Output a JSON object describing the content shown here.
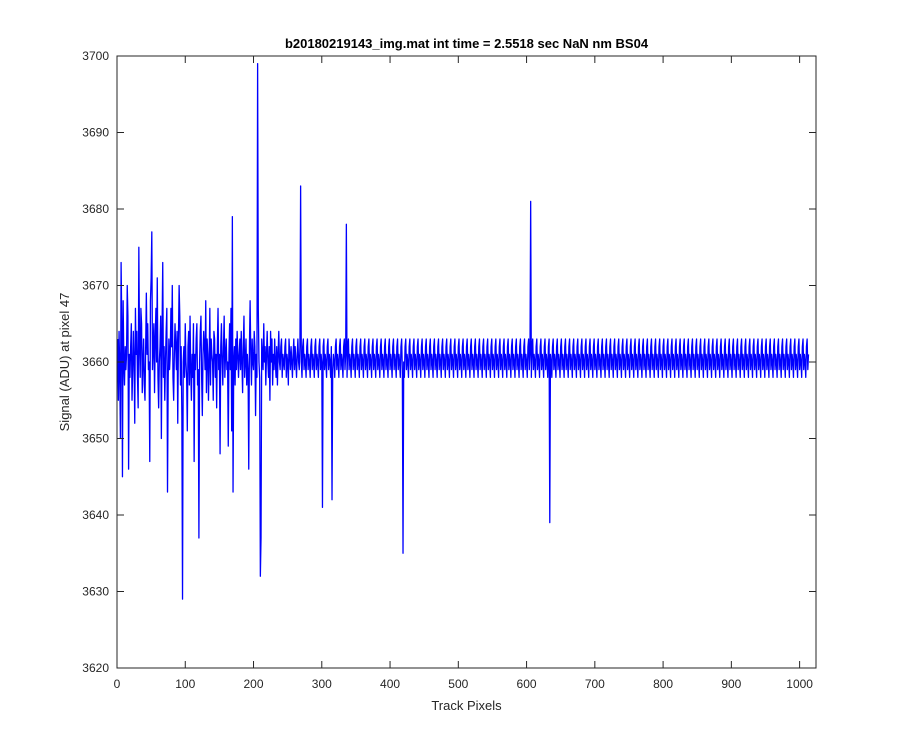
{
  "chart_data": {
    "type": "line",
    "title": "b20180219143_img.mat int time = 2.5518 sec  NaN nm BS04",
    "xlabel": "Track Pixels",
    "ylabel": "Signal (ADU) at pixel 47",
    "xlim": [
      0,
      1024
    ],
    "ylim": [
      3620,
      3700
    ],
    "xticks": [
      0,
      100,
      200,
      300,
      400,
      500,
      600,
      700,
      800,
      900,
      1000
    ],
    "yticks": [
      3620,
      3630,
      3640,
      3650,
      3660,
      3670,
      3680,
      3690,
      3700
    ],
    "xtick_labels": [
      "0",
      "100",
      "200",
      "300",
      "400",
      "500",
      "600",
      "700",
      "800",
      "900",
      "1000"
    ],
    "ytick_labels": [
      "3620",
      "3630",
      "3640",
      "3650",
      "3660",
      "3670",
      "3680",
      "3690",
      "3700"
    ],
    "grid": false,
    "legend": "none",
    "series": [
      {
        "color": "#0000ff",
        "x_start": 1,
        "x_step": 1,
        "values": [
          3663,
          3655,
          3664,
          3659,
          3650,
          3673,
          3665,
          3645,
          3668,
          3660,
          3657,
          3662,
          3659,
          3661,
          3670,
          3666,
          3646,
          3661,
          3658,
          3662,
          3665,
          3655,
          3659,
          3664,
          3660,
          3652,
          3667,
          3661,
          3664,
          3658,
          3654,
          3675,
          3662,
          3658,
          3667,
          3665,
          3656,
          3660,
          3663,
          3657,
          3655,
          3662,
          3669,
          3661,
          3665,
          3659,
          3660,
          3647,
          3668,
          3671,
          3677,
          3659,
          3662,
          3665,
          3656,
          3663,
          3667,
          3660,
          3671,
          3658,
          3654,
          3660,
          3662,
          3666,
          3650,
          3664,
          3673,
          3658,
          3662,
          3655,
          3660,
          3664,
          3667,
          3643,
          3658,
          3663,
          3659,
          3661,
          3667,
          3662,
          3670,
          3658,
          3655,
          3661,
          3665,
          3662,
          3659,
          3664,
          3652,
          3663,
          3670,
          3666,
          3657,
          3662,
          3653,
          3629,
          3660,
          3662,
          3658,
          3665,
          3660,
          3658,
          3651,
          3662,
          3664,
          3657,
          3666,
          3659,
          3655,
          3661,
          3658,
          3665,
          3647,
          3661,
          3659,
          3663,
          3665,
          3657,
          3659,
          3637,
          3660,
          3664,
          3666,
          3658,
          3653,
          3661,
          3664,
          3662,
          3659,
          3668,
          3656,
          3663,
          3661,
          3655,
          3660,
          3667,
          3657,
          3663,
          3661,
          3660,
          3655,
          3664,
          3663,
          3658,
          3661,
          3654,
          3662,
          3667,
          3659,
          3661,
          3648,
          3662,
          3665,
          3660,
          3657,
          3662,
          3666,
          3658,
          3661,
          3663,
          3659,
          3660,
          3649,
          3661,
          3665,
          3659,
          3667,
          3651,
          3679,
          3643,
          3660,
          3662,
          3657,
          3663,
          3659,
          3664,
          3661,
          3658,
          3661,
          3663,
          3659,
          3664,
          3660,
          3656,
          3662,
          3666,
          3658,
          3660,
          3663,
          3657,
          3661,
          3659,
          3646,
          3662,
          3668,
          3661,
          3657,
          3663,
          3660,
          3659,
          3664,
          3662,
          3653,
          3661,
          3658,
          3699,
          3667,
          3660,
          3658,
          3632,
          3637,
          3663,
          3661,
          3659,
          3665,
          3660,
          3662,
          3657,
          3661,
          3664,
          3660,
          3658,
          3662,
          3655,
          3664,
          3660,
          3663,
          3657,
          3661,
          3659,
          3663,
          3660,
          3658,
          3662,
          3657,
          3661,
          3664,
          3660,
          3659,
          3662,
          3663,
          3658,
          3661,
          3660,
          3659,
          3662,
          3663,
          3658,
          3661,
          3660,
          3657,
          3663,
          3661,
          3659,
          3662,
          3660,
          3658,
          3661,
          3663,
          3659,
          3662,
          3660,
          3658,
          3661,
          3663,
          3660,
          3659,
          3662,
          3683,
          3660,
          3658,
          3662,
          3663,
          3659,
          3661,
          3660,
          3658,
          3662,
          3663,
          3659,
          3661,
          3660,
          3658,
          3662,
          3663,
          3659,
          3661,
          3660,
          3658,
          3662,
          3663,
          3659,
          3661,
          3660,
          3658,
          3662,
          3663,
          3659,
          3661,
          3660,
          3641,
          3662,
          3663,
          3659,
          3661,
          3660,
          3658,
          3662,
          3663,
          3659,
          3661,
          3660,
          3658,
          3662,
          3642,
          3659,
          3661,
          3660,
          3658,
          3662,
          3663,
          3659,
          3661,
          3660,
          3658,
          3662,
          3663,
          3659,
          3661,
          3660,
          3658,
          3662,
          3663,
          3659,
          3661,
          3678,
          3658,
          3662,
          3663,
          3659,
          3661,
          3660,
          3658,
          3662,
          3663,
          3659,
          3661,
          3660,
          3658,
          3662,
          3663,
          3659,
          3661,
          3660,
          3658,
          3662,
          3663,
          3659,
          3661,
          3660,
          3658,
          3662,
          3663,
          3659,
          3661,
          3660,
          3658,
          3662,
          3663,
          3659,
          3661,
          3660,
          3658,
          3662,
          3663,
          3659,
          3661,
          3660,
          3658,
          3662,
          3663,
          3659,
          3661,
          3660,
          3658,
          3662,
          3663,
          3659,
          3661,
          3660,
          3658,
          3662,
          3663,
          3659,
          3661,
          3660,
          3658,
          3662,
          3663,
          3659,
          3661,
          3660,
          3658,
          3662,
          3663,
          3659,
          3661,
          3660,
          3658,
          3662,
          3663,
          3659,
          3661,
          3660,
          3658,
          3662,
          3663,
          3659,
          3635,
          3660,
          3658,
          3662,
          3663,
          3659,
          3661,
          3660,
          3658,
          3662,
          3663,
          3659,
          3661,
          3660,
          3658,
          3662,
          3663,
          3659,
          3661,
          3660,
          3658,
          3662,
          3663,
          3659,
          3661,
          3660,
          3658,
          3662,
          3663,
          3659,
          3661,
          3660,
          3658,
          3662,
          3663,
          3659,
          3661,
          3660,
          3658,
          3662,
          3663,
          3659,
          3661,
          3660,
          3658,
          3662,
          3663,
          3659,
          3661,
          3660,
          3658,
          3662,
          3663,
          3659,
          3661,
          3660,
          3658,
          3662,
          3663,
          3659,
          3661,
          3660,
          3658,
          3662,
          3663,
          3659,
          3661,
          3660,
          3658,
          3662,
          3663,
          3659,
          3661,
          3660,
          3658,
          3662,
          3663,
          3659,
          3661,
          3660,
          3658,
          3662,
          3663,
          3659,
          3661,
          3660,
          3658,
          3662,
          3663,
          3659,
          3661,
          3660,
          3658,
          3662,
          3663,
          3659,
          3661,
          3660,
          3658,
          3662,
          3663,
          3659,
          3661,
          3660,
          3658,
          3662,
          3663,
          3659,
          3661,
          3660,
          3658,
          3662,
          3663,
          3659,
          3661,
          3660,
          3658,
          3662,
          3663,
          3659,
          3661,
          3660,
          3658,
          3662,
          3663,
          3659,
          3661,
          3660,
          3658,
          3662,
          3663,
          3659,
          3661,
          3660,
          3658,
          3662,
          3663,
          3659,
          3661,
          3660,
          3658,
          3662,
          3663,
          3659,
          3661,
          3660,
          3658,
          3662,
          3663,
          3659,
          3661,
          3660,
          3658,
          3662,
          3663,
          3659,
          3661,
          3660,
          3658,
          3662,
          3663,
          3659,
          3661,
          3660,
          3658,
          3662,
          3663,
          3659,
          3661,
          3660,
          3658,
          3662,
          3663,
          3659,
          3661,
          3660,
          3658,
          3662,
          3663,
          3659,
          3661,
          3660,
          3658,
          3662,
          3663,
          3659,
          3661,
          3681,
          3658,
          3662,
          3663,
          3659,
          3661,
          3660,
          3658,
          3662,
          3663,
          3659,
          3661,
          3660,
          3658,
          3662,
          3663,
          3659,
          3661,
          3660,
          3658,
          3662,
          3663,
          3659,
          3661,
          3660,
          3658,
          3662,
          3663,
          3639,
          3661,
          3660,
          3658,
          3662,
          3663,
          3659,
          3661,
          3660,
          3658,
          3662,
          3663,
          3659,
          3661,
          3660,
          3658,
          3662,
          3663,
          3659,
          3661,
          3660,
          3658,
          3662,
          3663,
          3659,
          3661,
          3660,
          3658,
          3662,
          3663,
          3659,
          3661,
          3660,
          3658,
          3662,
          3663,
          3659,
          3661,
          3660,
          3658,
          3662,
          3663,
          3659,
          3661,
          3660,
          3658,
          3662,
          3663,
          3659,
          3661,
          3660,
          3658,
          3662,
          3663,
          3659,
          3661,
          3660,
          3658,
          3662,
          3663,
          3659,
          3661,
          3660,
          3658,
          3662,
          3663,
          3659,
          3661,
          3660,
          3658,
          3662,
          3663,
          3659,
          3661,
          3660,
          3658,
          3662,
          3663,
          3659,
          3661,
          3660,
          3658,
          3662,
          3663,
          3659,
          3661,
          3660,
          3658,
          3662,
          3663,
          3659,
          3661,
          3660,
          3658,
          3662,
          3663,
          3659,
          3661,
          3660,
          3658,
          3662,
          3663,
          3659,
          3661,
          3660,
          3658,
          3662,
          3663,
          3659,
          3661,
          3660,
          3658,
          3662,
          3663,
          3659,
          3661,
          3660,
          3658,
          3662,
          3663,
          3659,
          3661,
          3660,
          3658,
          3662,
          3663,
          3659,
          3661,
          3660,
          3658,
          3662,
          3663,
          3659,
          3661,
          3660,
          3658,
          3662,
          3663,
          3659,
          3661,
          3660,
          3658,
          3662,
          3663,
          3659,
          3661,
          3660,
          3658,
          3662,
          3663,
          3659,
          3661,
          3660,
          3658,
          3662,
          3663,
          3659,
          3661,
          3660,
          3658,
          3662,
          3663,
          3659,
          3661,
          3660,
          3658,
          3662,
          3663,
          3659,
          3661,
          3660,
          3658,
          3662,
          3663,
          3659,
          3661,
          3660,
          3658,
          3662,
          3663,
          3659,
          3661,
          3660,
          3658,
          3662,
          3663,
          3659,
          3661,
          3660,
          3658,
          3662,
          3663,
          3659,
          3661,
          3660,
          3658,
          3662,
          3663,
          3659,
          3661,
          3660,
          3658,
          3662,
          3663,
          3659,
          3661,
          3660,
          3658,
          3662,
          3663,
          3659,
          3661,
          3660,
          3658,
          3662,
          3663,
          3659,
          3661,
          3660,
          3658,
          3662,
          3663,
          3659,
          3661,
          3660,
          3658,
          3662,
          3663,
          3659,
          3661,
          3660,
          3658,
          3662,
          3663,
          3659,
          3661,
          3660,
          3658,
          3662,
          3663,
          3659,
          3661,
          3660,
          3658,
          3662,
          3663,
          3659,
          3661,
          3660,
          3658,
          3662,
          3663,
          3659,
          3661,
          3660,
          3658,
          3662,
          3663,
          3659,
          3661,
          3660,
          3658,
          3662,
          3663,
          3659,
          3661,
          3660,
          3658,
          3662,
          3663,
          3659,
          3661,
          3660,
          3658,
          3662,
          3663,
          3659,
          3661,
          3660,
          3658,
          3662,
          3663,
          3659,
          3661,
          3660,
          3658,
          3662,
          3663,
          3659,
          3661,
          3660,
          3658,
          3662,
          3663,
          3659,
          3661,
          3660,
          3658,
          3662,
          3663,
          3659,
          3661,
          3660,
          3658,
          3662,
          3663,
          3659,
          3661,
          3660,
          3658,
          3662,
          3663,
          3659,
          3661,
          3660,
          3658,
          3662,
          3663,
          3659,
          3661,
          3660,
          3658,
          3662,
          3663,
          3659,
          3661,
          3660,
          3658,
          3662,
          3663,
          3659,
          3661,
          3660,
          3658,
          3662,
          3663,
          3659,
          3661,
          3660,
          3658,
          3662,
          3663,
          3659,
          3661,
          3660,
          3658,
          3662,
          3663,
          3659,
          3661,
          3660,
          3658,
          3662,
          3663,
          3659,
          3661,
          3660,
          3658,
          3662,
          3663,
          3659,
          3661,
          3660,
          3658,
          3662,
          3663,
          3659,
          3661,
          3660,
          3658,
          3662,
          3663,
          3659,
          3661,
          3660,
          3658,
          3662,
          3663,
          3659,
          3661
        ]
      }
    ]
  },
  "ui": {
    "axes_color": "#262626",
    "background": "#ffffff"
  }
}
